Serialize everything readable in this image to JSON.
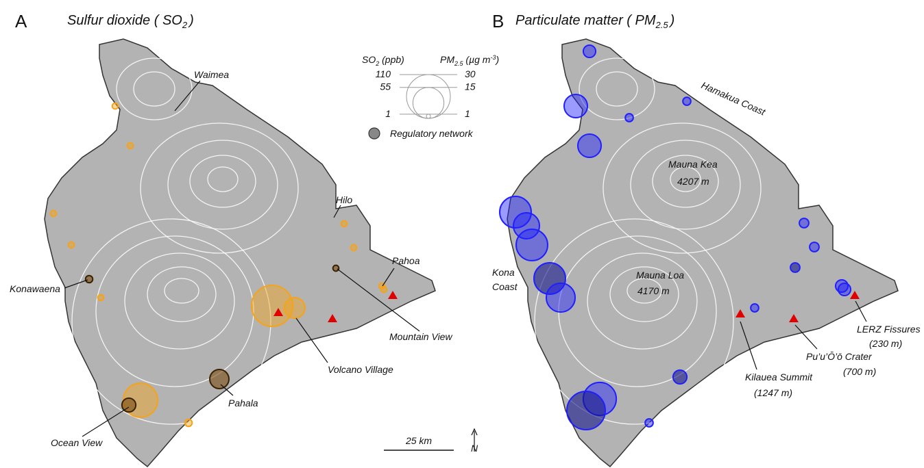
{
  "panels": [
    {
      "letter": "A",
      "title": {
        "main": "Sulfur dioxide ( SO",
        "sub": "2",
        "close": ")"
      },
      "places": [
        "Waimea",
        "Hilo",
        "Pahoa",
        "Konawaena",
        "Mountain View",
        "Volcano Village",
        "Pahala",
        "Ocean View"
      ],
      "color": "#f5a31a",
      "regulatory_color": "#7a4a10",
      "bubbles": [
        {
          "value": 2,
          "regulatory": false
        },
        {
          "value": 2,
          "regulatory": false
        },
        {
          "value": 2,
          "regulatory": false
        },
        {
          "value": 2,
          "regulatory": false
        },
        {
          "value": 3,
          "regulatory": true
        },
        {
          "value": 2,
          "regulatory": false
        },
        {
          "value": 97,
          "regulatory": false
        },
        {
          "value": 24,
          "regulatory": false
        },
        {
          "value": 2,
          "regulatory": false
        },
        {
          "value": 2,
          "regulatory": false
        },
        {
          "value": 2,
          "regulatory": true
        },
        {
          "value": 2,
          "regulatory": false
        },
        {
          "value": 2,
          "regulatory": false
        },
        {
          "value": 21,
          "regulatory": true
        },
        {
          "value": 67,
          "regulatory": false
        },
        {
          "value": 11,
          "regulatory": true
        },
        {
          "value": 3,
          "regulatory": false
        }
      ]
    },
    {
      "letter": "B",
      "title": {
        "main": "Particulate matter ( PM",
        "sub": "2.5",
        "close": ")"
      },
      "places": [
        "Hamakua Coast",
        "Mauna Kea",
        "4207 m",
        "Mauna Loa",
        "4170 m",
        "Kona",
        "Coast",
        "LERZ Fissures",
        "(230 m)",
        "Pu’u’Ō’ō Crater",
        "(700 m)",
        "Kilauea Summit",
        "(1247 m)"
      ],
      "color": "#1f1fff",
      "regulatory_color": "#15158a",
      "bubbles": [
        {
          "value": 2.4,
          "regulatory": false
        },
        {
          "value": 8.5,
          "regulatory": false
        },
        {
          "value": 1,
          "regulatory": false
        },
        {
          "value": 1,
          "regulatory": false
        },
        {
          "value": 8.5,
          "regulatory": false
        },
        {
          "value": 15.5,
          "regulatory": false
        },
        {
          "value": 10.6,
          "regulatory": false
        },
        {
          "value": 15.5,
          "regulatory": false
        },
        {
          "value": 1.4,
          "regulatory": false
        },
        {
          "value": 1.4,
          "regulatory": false
        },
        {
          "value": 1.4,
          "regulatory": true
        },
        {
          "value": 15.5,
          "regulatory": true
        },
        {
          "value": 13,
          "regulatory": false
        },
        {
          "value": 1,
          "regulatory": false
        },
        {
          "value": 2.4,
          "regulatory": false
        },
        {
          "value": 2.4,
          "regulatory": false
        },
        {
          "value": 3,
          "regulatory": true
        },
        {
          "value": 17,
          "regulatory": false
        },
        {
          "value": 23,
          "regulatory": true
        },
        {
          "value": 1,
          "regulatory": false
        }
      ]
    }
  ],
  "legend": {
    "so2_label": "SO",
    "so2_sub": "2",
    "so2_unit": " (ppb)",
    "pm_label": "PM",
    "pm_sub": "2.5",
    "pm_unit": " (µg m",
    "pm_exp": "-3",
    "pm_close": ")",
    "so2_values": [
      110,
      55,
      1
    ],
    "pm_values": [
      30,
      15,
      1
    ],
    "regulatory": "Regulatory network"
  },
  "scale_bar": "25 km",
  "north": "N"
}
